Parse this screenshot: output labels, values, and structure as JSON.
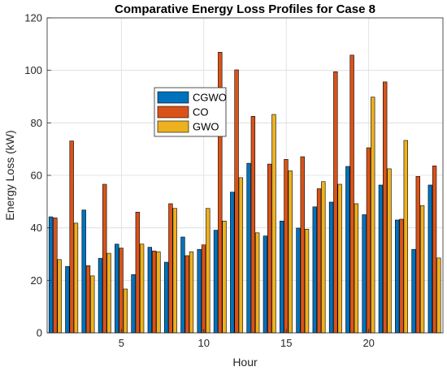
{
  "chart_data": {
    "type": "bar",
    "title": "Comparative Energy Loss Profiles for Case 8",
    "xlabel": "Hour",
    "ylabel": "Energy Loss (kW)",
    "x": [
      1,
      2,
      3,
      4,
      5,
      6,
      7,
      8,
      9,
      10,
      11,
      12,
      13,
      14,
      15,
      16,
      17,
      18,
      19,
      20,
      21,
      22,
      23,
      24
    ],
    "xticks": [
      5,
      10,
      15,
      20
    ],
    "xlim": [
      0.5,
      24.5
    ],
    "ylim": [
      0,
      120
    ],
    "yticks": [
      0,
      20,
      40,
      60,
      80,
      100,
      120
    ],
    "grid": true,
    "legend_position": "upper-center",
    "series": [
      {
        "name": "CGWO",
        "color": "#0072BD",
        "values": [
          44.2,
          25.3,
          46.8,
          28.4,
          33.8,
          22.2,
          32.6,
          26.9,
          36.5,
          31.8,
          39.1,
          53.6,
          64.6,
          36.9,
          42.6,
          39.9,
          48.0,
          49.8,
          63.4,
          45.0,
          56.3,
          43.0,
          31.8,
          56.3
        ]
      },
      {
        "name": "CO",
        "color": "#D95319",
        "values": [
          43.8,
          73.1,
          25.6,
          56.6,
          32.3,
          46.0,
          31.2,
          49.2,
          29.4,
          33.5,
          106.9,
          100.2,
          82.5,
          64.3,
          66.1,
          67.1,
          54.9,
          99.5,
          105.8,
          70.5,
          95.6,
          43.3,
          59.6,
          63.6
        ]
      },
      {
        "name": "GWO",
        "color": "#EDB120",
        "values": [
          27.9,
          41.8,
          21.7,
          30.3,
          16.7,
          33.8,
          30.9,
          47.4,
          30.9,
          47.4,
          42.6,
          59.1,
          38.1,
          83.2,
          61.7,
          39.5,
          57.6,
          56.6,
          49.2,
          89.8,
          62.5,
          73.3,
          48.5,
          28.5
        ]
      }
    ]
  }
}
